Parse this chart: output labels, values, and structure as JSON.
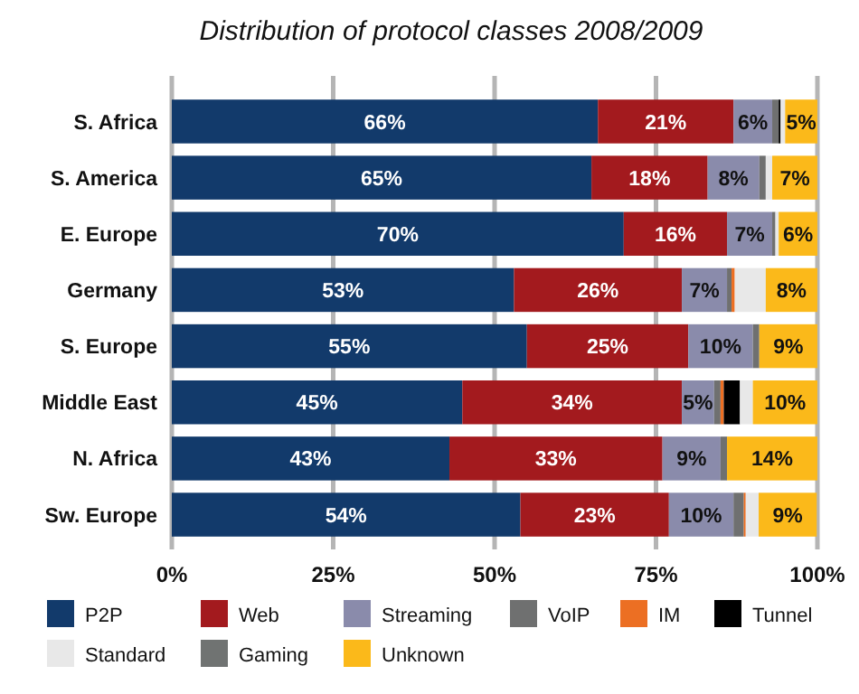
{
  "chart_data": {
    "type": "bar",
    "orientation": "horizontal",
    "stacked": true,
    "title": "Distribution of protocol classes 2008/2009",
    "categories": [
      "S. Africa",
      "S. America",
      "E. Europe",
      "Germany",
      "S. Europe",
      "Middle East",
      "N. Africa",
      "Sw. Europe"
    ],
    "series": [
      {
        "name": "P2P",
        "color": "#123a6b",
        "values": [
          66,
          65,
          70,
          53,
          55,
          45,
          43,
          54
        ],
        "value_labels": [
          "66%",
          "65%",
          "70%",
          "53%",
          "55%",
          "45%",
          "43%",
          "54%"
        ]
      },
      {
        "name": "Web",
        "color": "#a31a1e",
        "values": [
          21,
          18,
          16,
          26,
          25,
          34,
          33,
          23
        ],
        "value_labels": [
          "21%",
          "18%",
          "16%",
          "26%",
          "25%",
          "34%",
          "33%",
          "23%"
        ]
      },
      {
        "name": "Streaming",
        "color": "#8a8bab",
        "values": [
          6,
          8,
          7,
          7,
          10,
          5,
          9,
          10
        ],
        "value_labels": [
          "6%",
          "8%",
          "7%",
          "7%",
          "10%",
          "5%",
          "9%",
          "10%"
        ]
      },
      {
        "name": "VoIP",
        "color": "#6f7070",
        "values": [
          1,
          1,
          0.5,
          0.7,
          1,
          1,
          1,
          1.6
        ]
      },
      {
        "name": "IM",
        "color": "#ec6f23",
        "values": [
          0,
          0,
          0,
          0.5,
          0,
          0.5,
          0,
          0.3
        ]
      },
      {
        "name": "Tunnel",
        "color": "#000000",
        "values": [
          0.3,
          0,
          0,
          0,
          0,
          2.5,
          0,
          0
        ]
      },
      {
        "name": "Standard",
        "color": "#e8e8e8",
        "values": [
          0.7,
          1,
          0.5,
          4.8,
          0,
          2,
          0,
          2
        ]
      },
      {
        "name": "Gaming",
        "color": "#707372",
        "values": [
          0,
          0,
          0,
          0,
          0,
          0,
          0,
          0
        ]
      },
      {
        "name": "Unknown",
        "color": "#fbb91a",
        "values": [
          5,
          7,
          6,
          8,
          9,
          10,
          14,
          9
        ],
        "value_labels": [
          "5%",
          "7%",
          "6%",
          "8%",
          "9%",
          "10%",
          "14%",
          "9%"
        ]
      }
    ],
    "xlim": [
      0,
      100
    ],
    "xticks": [
      {
        "value": 0,
        "label": "0%"
      },
      {
        "value": 25,
        "label": "25%"
      },
      {
        "value": 50,
        "label": "50%"
      },
      {
        "value": 75,
        "label": "75%"
      },
      {
        "value": 100,
        "label": "100%"
      }
    ],
    "grid": "x",
    "legend": "bottom"
  }
}
